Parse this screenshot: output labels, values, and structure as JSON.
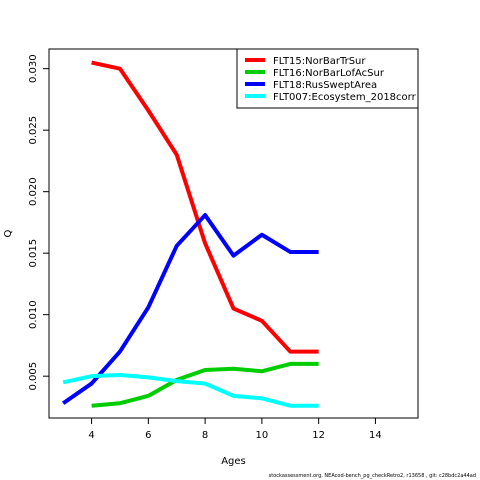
{
  "chart_data": {
    "type": "line",
    "title": "",
    "xlabel": "Ages",
    "ylabel": "Q",
    "xlim": [
      2.5,
      15.5
    ],
    "ylim": [
      0.0016,
      0.0316
    ],
    "xticks": [
      4,
      6,
      8,
      10,
      12,
      14
    ],
    "yticks": [
      0.005,
      0.01,
      0.015,
      0.02,
      0.025,
      0.03
    ],
    "ytick_labels": [
      "0.005",
      "0.010",
      "0.015",
      "0.020",
      "0.025",
      "0.030"
    ],
    "legend_position": "top-right",
    "grid": false,
    "series": [
      {
        "name": "FLT15:NorBarTrSur",
        "color": "#ff0000",
        "x": [
          4,
          5,
          6,
          7,
          8,
          9,
          10,
          11,
          12
        ],
        "y": [
          0.0305,
          0.03,
          0.0266,
          0.023,
          0.0158,
          0.0105,
          0.0095,
          0.007,
          0.007
        ]
      },
      {
        "name": "FLT16:NorBarLofAcSur",
        "color": "#00cd00",
        "x": [
          4,
          5,
          6,
          7,
          8,
          9,
          10,
          11,
          12
        ],
        "y": [
          0.0026,
          0.0028,
          0.0034,
          0.0047,
          0.0055,
          0.0056,
          0.0054,
          0.006,
          0.006
        ]
      },
      {
        "name": "FLT18:RusSweptArea",
        "color": "#0000ff",
        "x": [
          3,
          4,
          5,
          6,
          7,
          8,
          9,
          10,
          11,
          12
        ],
        "y": [
          0.0028,
          0.0044,
          0.007,
          0.0106,
          0.0156,
          0.0181,
          0.0148,
          0.0165,
          0.0151,
          0.0151
        ]
      },
      {
        "name": "FLT007:Ecosystem_2018corr",
        "color": "#00ffff",
        "x": [
          3,
          4,
          5,
          6,
          7,
          8,
          9,
          10,
          11,
          12
        ],
        "y": [
          0.0045,
          0.005,
          0.0051,
          0.0049,
          0.0046,
          0.0044,
          0.0034,
          0.0032,
          0.0026,
          0.0026
        ]
      }
    ]
  },
  "footer": "stockassessment.org, NEAcod-bench_pg_checkRetro2, r13658 , git: c28bdc2a44ad"
}
